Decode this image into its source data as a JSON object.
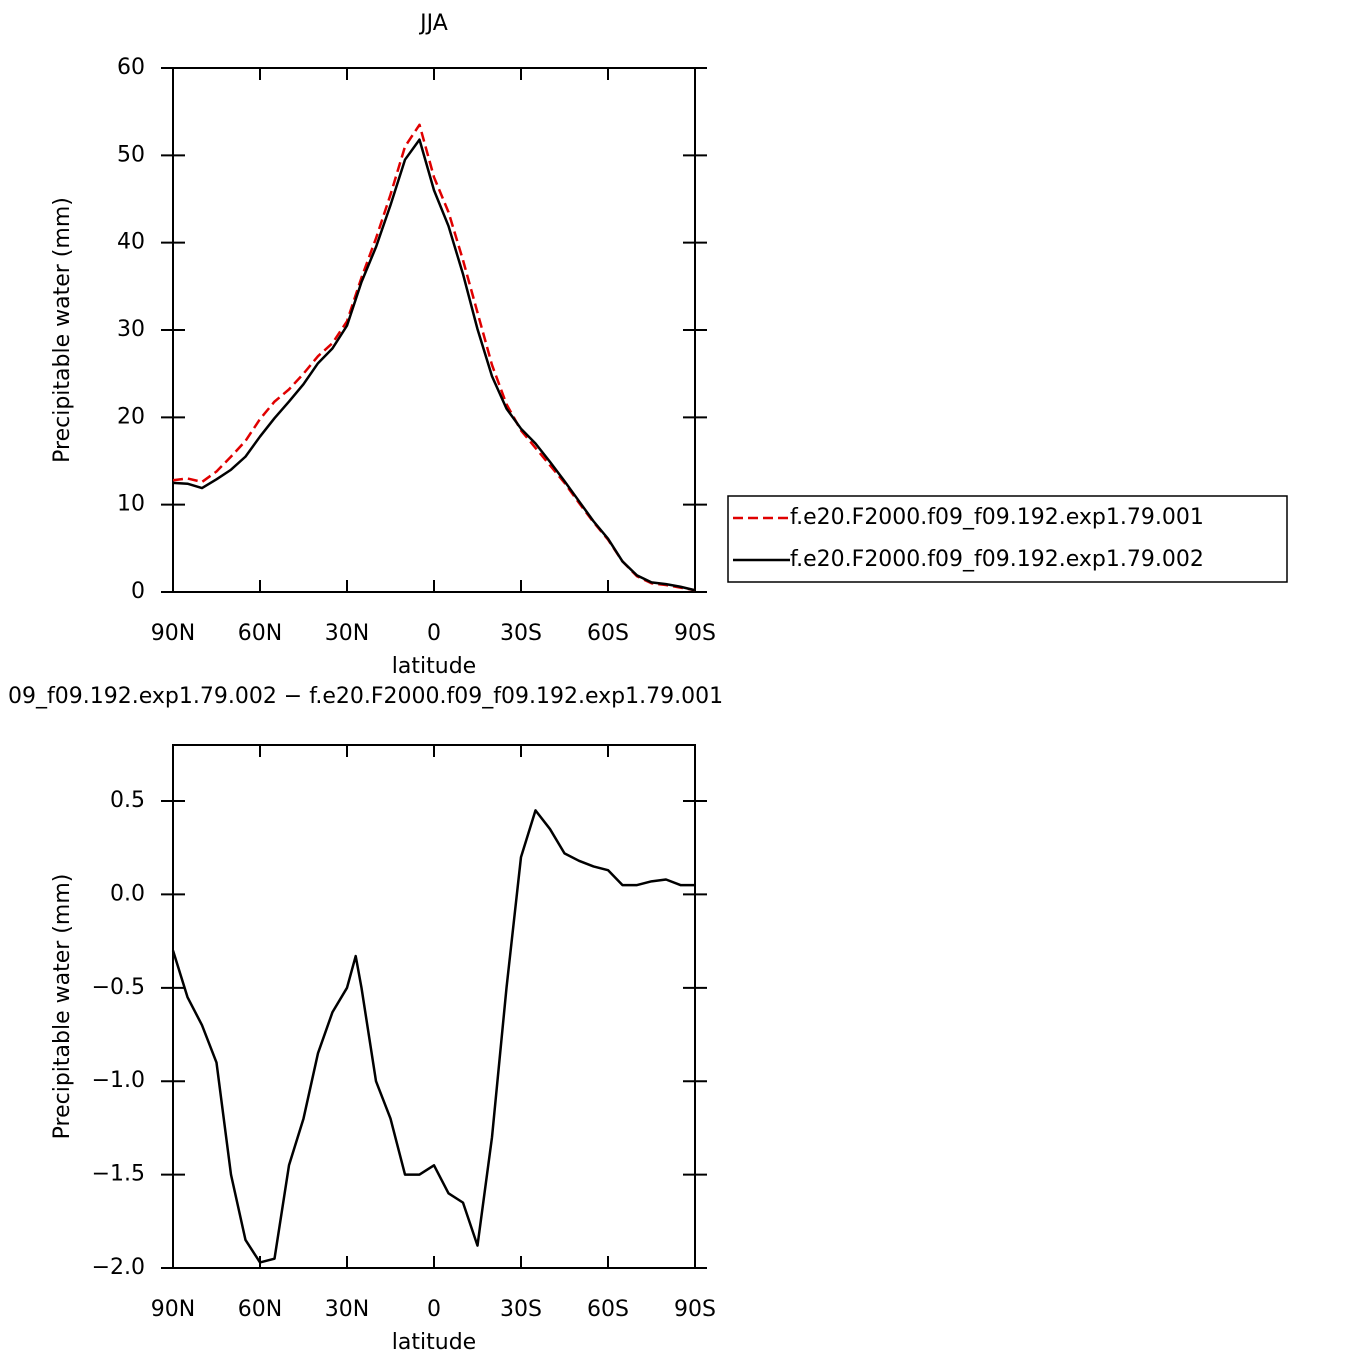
{
  "chart_data": [
    {
      "type": "line",
      "title": "JJA",
      "x_label": "latitude",
      "y_label": "Precipitable water (mm)",
      "x": [
        90,
        85,
        80,
        75,
        70,
        65,
        60,
        55,
        50,
        45,
        40,
        35,
        30,
        25,
        20,
        15,
        10,
        5,
        0,
        -5,
        -10,
        -15,
        -20,
        -25,
        -30,
        -35,
        -40,
        -45,
        -50,
        -55,
        -60,
        -65,
        -70,
        -75,
        -80,
        -85,
        -90
      ],
      "series": [
        {
          "name": "f.e20.F2000.f09_f09.192.exp1.79.001",
          "color": "#e00000",
          "line_style": "dashed",
          "values": [
            12.8,
            13.0,
            12.6,
            13.8,
            15.5,
            17.3,
            19.8,
            21.8,
            23.2,
            25.0,
            27.0,
            28.5,
            31.0,
            36.0,
            40.5,
            45.5,
            51.0,
            53.5,
            47.5,
            43.5,
            38.0,
            32.0,
            26.0,
            21.5,
            18.5,
            16.5,
            14.5,
            12.5,
            10.2,
            8.0,
            6.0,
            3.5,
            1.8,
            1.0,
            0.8,
            0.5,
            0.2
          ]
        },
        {
          "name": "f.e20.F2000.f09_f09.192.exp1.79.002",
          "color": "#000000",
          "line_style": "solid",
          "values": [
            12.5,
            12.4,
            11.9,
            12.9,
            14.0,
            15.5,
            17.8,
            19.9,
            21.8,
            23.8,
            26.2,
            27.9,
            30.5,
            35.5,
            39.5,
            44.3,
            49.5,
            51.8,
            46.0,
            41.9,
            36.4,
            30.1,
            24.7,
            21.0,
            18.7,
            17.0,
            14.9,
            12.7,
            10.4,
            8.1,
            6.1,
            3.5,
            1.9,
            1.1,
            0.9,
            0.6,
            0.2
          ]
        }
      ],
      "xlim": [
        90,
        -90
      ],
      "xticks": [
        {
          "value": 90,
          "label": "90N"
        },
        {
          "value": 60,
          "label": "60N"
        },
        {
          "value": 30,
          "label": "30N"
        },
        0,
        {
          "value": -30,
          "label": "30S"
        },
        {
          "value": -60,
          "label": "60S"
        },
        {
          "value": -90,
          "label": "90S"
        }
      ],
      "ylim": [
        0,
        60
      ],
      "yticks": [
        0,
        10,
        20,
        30,
        40,
        50,
        60
      ],
      "legend": "outside-right"
    },
    {
      "type": "line",
      "title": "09_f09.192.exp1.79.002 − f.e20.F2000.f09_f09.192.exp1.79.001",
      "x_label": "latitude",
      "y_label": "Precipitable water (mm)",
      "x": [
        90,
        85,
        80,
        75,
        70,
        65,
        60,
        55,
        50,
        45,
        40,
        35,
        30,
        27,
        25,
        20,
        15,
        10,
        5,
        0,
        -5,
        -10,
        -15,
        -20,
        -25,
        -30,
        -35,
        -40,
        -45,
        -50,
        -55,
        -60,
        -65,
        -70,
        -75,
        -80,
        -85,
        -90
      ],
      "series": [
        {
          "color": "#000000",
          "line_style": "solid",
          "values": [
            -0.3,
            -0.55,
            -0.7,
            -0.9,
            -1.5,
            -1.85,
            -1.97,
            -1.95,
            -1.45,
            -1.2,
            -0.85,
            -0.63,
            -0.5,
            -0.33,
            -0.5,
            -1.0,
            -1.2,
            -1.5,
            -1.5,
            -1.45,
            -1.6,
            -1.65,
            -1.88,
            -1.3,
            -0.5,
            0.2,
            0.45,
            0.35,
            0.22,
            0.18,
            0.15,
            0.13,
            0.05,
            0.05,
            0.07,
            0.08,
            0.05,
            0.05
          ]
        }
      ],
      "xlim": [
        90,
        -90
      ],
      "xticks": [
        {
          "value": 90,
          "label": "90N"
        },
        {
          "value": 60,
          "label": "60N"
        },
        {
          "value": 30,
          "label": "30N"
        },
        0,
        {
          "value": -30,
          "label": "30S"
        },
        {
          "value": -60,
          "label": "60S"
        },
        {
          "value": -90,
          "label": "90S"
        }
      ],
      "ylim": [
        -2,
        0.8
      ],
      "yticks": [
        {
          "value": -2,
          "label": "−2.0"
        },
        {
          "value": -1.5,
          "label": "−1.5"
        },
        {
          "value": -1,
          "label": "−1.0"
        },
        {
          "value": -0.5,
          "label": "−0.5"
        },
        {
          "value": 0,
          "label": "0.0"
        },
        {
          "value": 0.5,
          "label": "0.5"
        }
      ]
    }
  ]
}
